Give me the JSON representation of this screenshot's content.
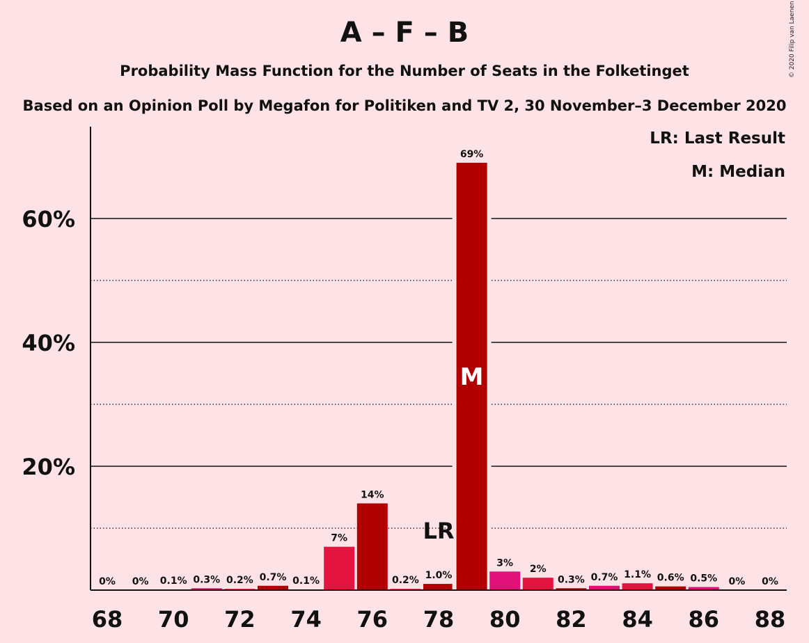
{
  "title": "A – F – B",
  "subtitle": "Probability Mass Function for the Number of Seats in the Folketinget",
  "subtitle2": "Based on an Opinion Poll by Megafon for Politiken and TV 2, 30 November–3 December 2020",
  "copyright": "© 2020 Filip van Laenen",
  "legend": {
    "last_result": "LR: Last Result",
    "median": "M: Median"
  },
  "colors": {
    "dark": "#b00000",
    "bright": "#e31540",
    "pink": "#e0127a",
    "background": "#fde2e6"
  },
  "chart_data": {
    "type": "bar",
    "x": [
      68,
      69,
      70,
      71,
      72,
      73,
      74,
      75,
      76,
      77,
      78,
      79,
      80,
      81,
      82,
      83,
      84,
      85,
      86,
      87,
      88
    ],
    "values": [
      0,
      0,
      0.1,
      0.3,
      0.2,
      0.7,
      0.1,
      7,
      14,
      0.2,
      1.0,
      69,
      3,
      2,
      0.3,
      0.7,
      1.1,
      0.6,
      0.5,
      0,
      0
    ],
    "labels": [
      "0%",
      "0%",
      "0.1%",
      "0.3%",
      "0.2%",
      "0.7%",
      "0.1%",
      "7%",
      "14%",
      "0.2%",
      "1.0%",
      "69%",
      "3%",
      "2%",
      "0.3%",
      "0.7%",
      "1.1%",
      "0.6%",
      "0.5%",
      "0%",
      "0%"
    ],
    "bar_colors": [
      "dark",
      "bright",
      "pink",
      "pink",
      "bright",
      "dark",
      "pink",
      "bright",
      "dark",
      "bright",
      "dark",
      "dark",
      "pink",
      "bright",
      "dark",
      "pink",
      "bright",
      "dark",
      "pink",
      "bright",
      "dark"
    ],
    "xticks": [
      68,
      70,
      72,
      74,
      76,
      78,
      80,
      82,
      84,
      86,
      88
    ],
    "yticks": [
      {
        "value": 20,
        "label": "20%"
      },
      {
        "value": 40,
        "label": "40%"
      },
      {
        "value": 60,
        "label": "60%"
      }
    ],
    "dotted_gridlines": [
      10,
      30,
      50
    ],
    "ylim": [
      0,
      75
    ],
    "last_result": {
      "x": 78,
      "label": "LR"
    },
    "median": {
      "x": 79,
      "label": "M"
    }
  }
}
